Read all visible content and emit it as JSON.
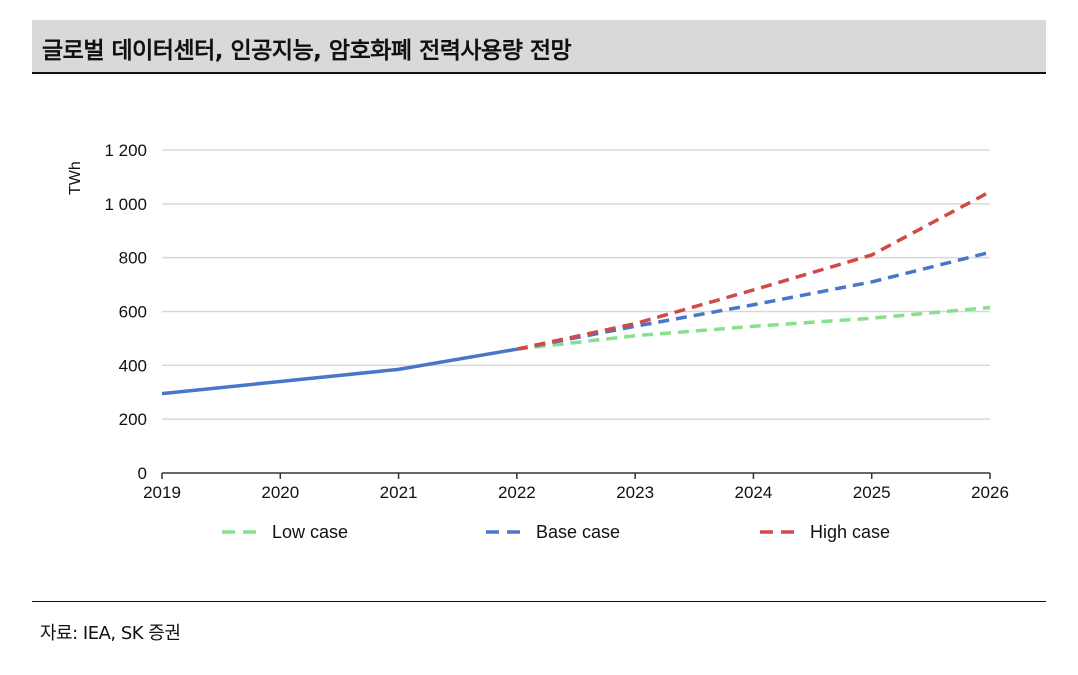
{
  "title": "글로벌 데이터센터, 인공지능, 암호화폐 전력사용량 전망",
  "source": "자료: IEA, SK 증권",
  "chart_data": {
    "type": "line",
    "ylabel": "TWh",
    "ylim": [
      0,
      1200
    ],
    "yticks": [
      0,
      200,
      400,
      600,
      800,
      1000,
      1200
    ],
    "ytick_labels": [
      "0",
      "200",
      "400",
      "600",
      "800",
      "1 000",
      "1 200"
    ],
    "x": [
      2019,
      2020,
      2021,
      2022,
      2023,
      2024,
      2025,
      2026
    ],
    "x_labels": [
      "2019",
      "2020",
      "2021",
      "2022",
      "2023",
      "2024",
      "2025",
      "2026"
    ],
    "grid": true,
    "legend_position": "bottom",
    "historical": {
      "color": "#4a76c9",
      "x": [
        2019,
        2020,
        2021,
        2022
      ],
      "values": [
        295,
        340,
        385,
        460
      ]
    },
    "series": [
      {
        "name": "Low case",
        "color": "#86e08d",
        "dashed": true,
        "x": [
          2022,
          2023,
          2024,
          2025,
          2026
        ],
        "values": [
          460,
          510,
          545,
          575,
          615
        ]
      },
      {
        "name": "Base case",
        "color": "#4a76c9",
        "dashed": true,
        "x": [
          2022,
          2023,
          2024,
          2025,
          2026
        ],
        "values": [
          460,
          545,
          625,
          710,
          820
        ]
      },
      {
        "name": "High case",
        "color": "#d04a48",
        "dashed": true,
        "x": [
          2022,
          2023,
          2024,
          2025,
          2026
        ],
        "values": [
          460,
          555,
          680,
          810,
          1045
        ]
      }
    ]
  }
}
